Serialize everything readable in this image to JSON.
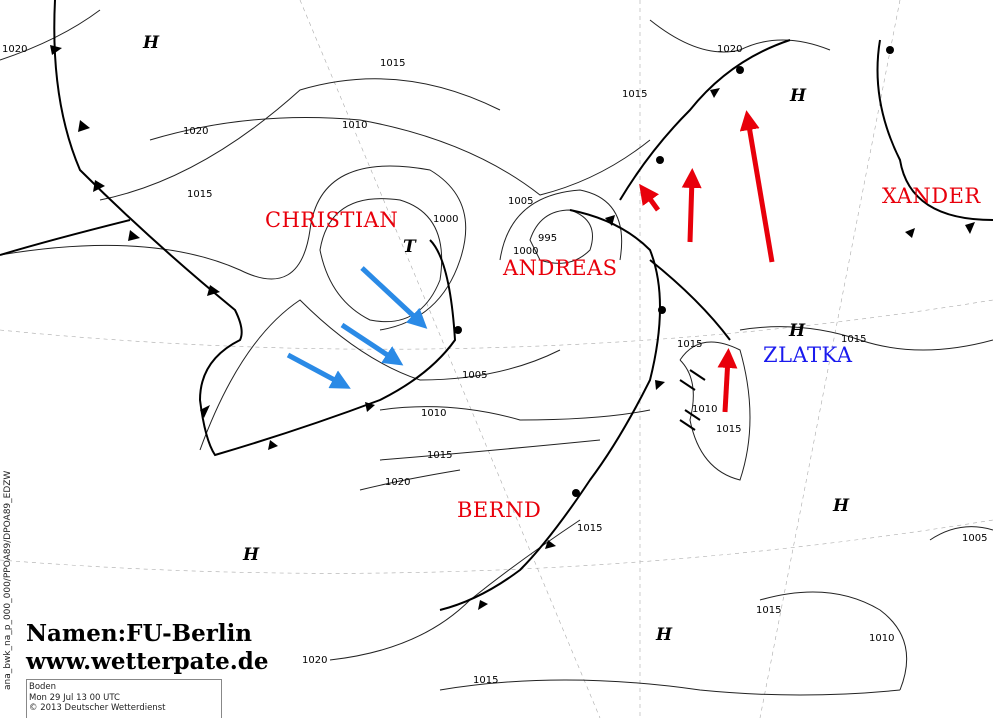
{
  "storm_names": [
    {
      "label": "CHRISTIAN",
      "color": "#e8000b"
    },
    {
      "label": "ANDREAS",
      "color": "#e8000b"
    },
    {
      "label": "BERND",
      "color": "#e8000b"
    },
    {
      "label": "ZLATKA",
      "color": "#1a1aee"
    },
    {
      "label": "XANDER",
      "color": "#e8000b"
    }
  ],
  "isobar_labels": [
    "1020",
    "1015",
    "1010",
    "1020",
    "1015",
    "1000",
    "995",
    "1000",
    "1005",
    "1005",
    "1010",
    "1015",
    "1020",
    "1015",
    "1020",
    "1015",
    "1015",
    "1020",
    "1015",
    "1010",
    "1015",
    "1015",
    "1015",
    "1010",
    "1005"
  ],
  "pressure_centers": [
    "H",
    "H",
    "H",
    "H",
    "H",
    "H",
    "T"
  ],
  "credits": {
    "names": "Namen:FU-Berlin",
    "website": "www.wetterpate.de"
  },
  "info": {
    "product": "Boden",
    "datetime": "Mon 29 Jul 13  00  UTC",
    "copyright": "© 2013  Deutscher Wetterdienst"
  },
  "product_code": "ana_bwk_na_p_000_000/PPOA89/DPOA89_EDZW",
  "arrow_colors": {
    "red": "#e8000b",
    "blue": "#2a8ae6"
  }
}
